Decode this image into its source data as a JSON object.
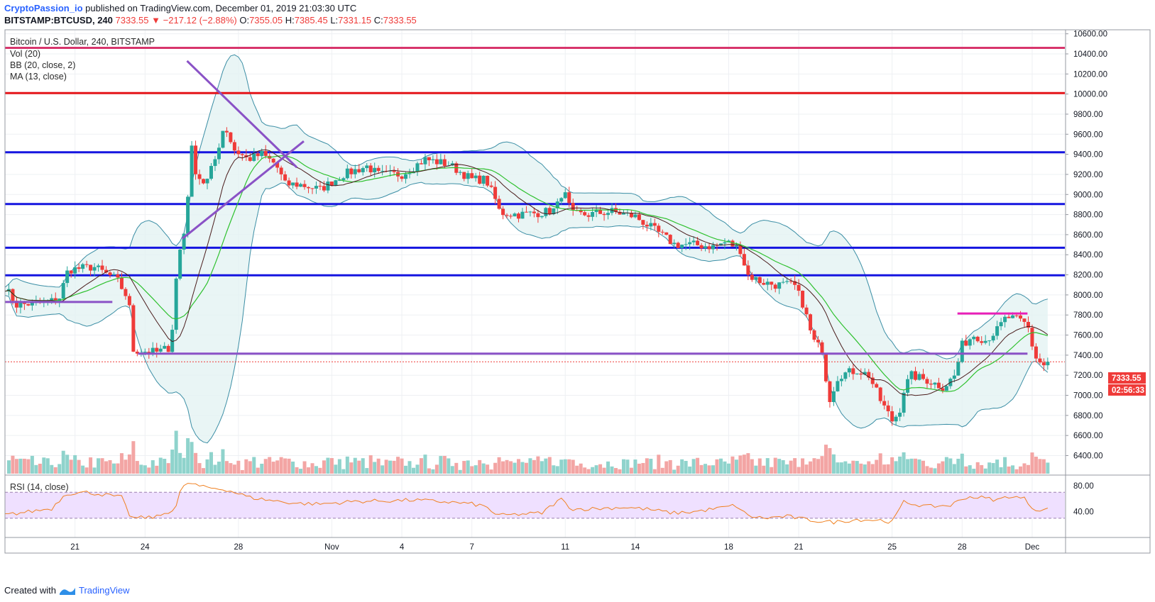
{
  "header": {
    "user": "CryptoPassion_io",
    "published": "published on TradingView.com, December 01, 2019 21:03:30 UTC",
    "symbol": "BITSTAMP:BTCUSD, 240",
    "last": "7333.55",
    "change": "−217.12 (−2.88%)",
    "open_label": "O:",
    "open": "7355.05",
    "high_label": "H:",
    "high": "7385.45",
    "low_label": "L:",
    "low": "7331.15",
    "close_label": "C:",
    "close": "7333.55"
  },
  "legend": {
    "title": "Bitcoin / U.S. Dollar, 240, BITSTAMP",
    "vol": "Vol (20)",
    "bb": "BB (20, close, 2)",
    "ma": "MA (13, close)",
    "rsi": "RSI (14, close)"
  },
  "footer": {
    "created": "Created with",
    "brand": "TradingView"
  },
  "price_tags": {
    "last": "7333.55",
    "countdown": "02:56:33"
  },
  "colors": {
    "up": "#26a69a",
    "down": "#ef3b39",
    "blue_line": "#1515e0",
    "red_line": "#e5151a",
    "magenta_line": "#e81fb7",
    "purple_line": "#8a52c6",
    "pink_line": "#d8356c",
    "bb_line": "#3b8ea5",
    "bb_fill": "#e3f2f3",
    "ma": "#4a1c1c",
    "basis": "#2fc12f",
    "rsi": "#f08020",
    "rsi_band": "#efe0ff"
  },
  "chart_data": {
    "type": "candlestick",
    "price_axis": {
      "ticks": [
        6400,
        6600,
        6800,
        7000,
        7200,
        7400,
        7600,
        7800,
        8000,
        8200,
        8400,
        8600,
        8800,
        9000,
        9200,
        9400,
        9600,
        9800,
        10000,
        10200,
        10400,
        10600
      ],
      "tick_labels": [
        "6400.00",
        "6600.00",
        "6800.00",
        "7000.00",
        "7200.00",
        "7400.00",
        "7600.00",
        "7800.00",
        "8000.00",
        "8200.00",
        "8400.00",
        "8600.00",
        "8800.00",
        "9000.00",
        "9200.00",
        "9400.00",
        "9600.00",
        "9800.00",
        "10000.00",
        "10200.00",
        "10400.00",
        "10600.00"
      ],
      "range": [
        6220,
        10640
      ]
    },
    "rsi_axis": {
      "ticks": [
        40,
        80
      ],
      "tick_labels": [
        "40.00",
        "80.00"
      ],
      "bands": [
        30,
        70
      ]
    },
    "x_labels": [
      {
        "label": "21",
        "day": 21
      },
      {
        "label": "24",
        "day": 24
      },
      {
        "label": "28",
        "day": 28
      },
      {
        "label": "Nov",
        "day": 32
      },
      {
        "label": "4",
        "day": 35
      },
      {
        "label": "7",
        "day": 38
      },
      {
        "label": "11",
        "day": 42
      },
      {
        "label": "14",
        "day": 45
      },
      {
        "label": "18",
        "day": 49
      },
      {
        "label": "21",
        "day": 52
      },
      {
        "label": "25",
        "day": 56
      },
      {
        "label": "28",
        "day": 59
      },
      {
        "label": "Dec",
        "day": 62
      }
    ],
    "horizontal_levels": [
      {
        "price": 10460,
        "color": "#d8356c"
      },
      {
        "price": 10010,
        "color": "#e5151a"
      },
      {
        "price": 9420,
        "color": "#1515e0"
      },
      {
        "price": 8905,
        "color": "#1515e0"
      },
      {
        "price": 8470,
        "color": "#1515e0"
      },
      {
        "price": 8195,
        "color": "#1515e0"
      }
    ],
    "segments": [
      {
        "from": [
          18.0,
          7930
        ],
        "to": [
          22.6,
          7930
        ],
        "color": "#8a52c6"
      },
      {
        "from": [
          23.7,
          7415
        ],
        "to": [
          61.8,
          7415
        ],
        "color": "#8a52c6"
      },
      {
        "from": [
          58.8,
          7815
        ],
        "to": [
          61.8,
          7815
        ],
        "color": "#e81fb7"
      },
      {
        "from": [
          25.8,
          10330
        ],
        "to": [
          30.5,
          9270
        ],
        "color": "#8a52c6"
      },
      {
        "from": [
          25.6,
          8560
        ],
        "to": [
          30.8,
          9530
        ],
        "color": "#8a52c6"
      }
    ],
    "last_price": 7333.55,
    "ohlc_waypoints": [
      [
        18.0,
        8080
      ],
      [
        18.5,
        7900
      ],
      [
        19.5,
        7920
      ],
      [
        20.3,
        7950
      ],
      [
        20.7,
        8250
      ],
      [
        21.8,
        8280
      ],
      [
        22.8,
        8150
      ],
      [
        23.3,
        7950
      ],
      [
        23.5,
        7450
      ],
      [
        24.5,
        7430
      ],
      [
        25.1,
        7480
      ],
      [
        25.4,
        8350
      ],
      [
        25.7,
        8650
      ],
      [
        26.0,
        9450
      ],
      [
        26.2,
        9200
      ],
      [
        26.6,
        9100
      ],
      [
        27.0,
        9350
      ],
      [
        27.4,
        9700
      ],
      [
        27.8,
        9450
      ],
      [
        28.4,
        9350
      ],
      [
        29.0,
        9400
      ],
      [
        29.6,
        9300
      ],
      [
        30.0,
        9100
      ],
      [
        30.6,
        9100
      ],
      [
        31.5,
        9050
      ],
      [
        32.5,
        9200
      ],
      [
        33.5,
        9280
      ],
      [
        34.0,
        9200
      ],
      [
        35.0,
        9200
      ],
      [
        36.0,
        9350
      ],
      [
        37.0,
        9300
      ],
      [
        38.0,
        9150
      ],
      [
        38.6,
        9150
      ],
      [
        39.0,
        8950
      ],
      [
        39.2,
        8820
      ],
      [
        40.0,
        8800
      ],
      [
        41.0,
        8820
      ],
      [
        41.6,
        8850
      ],
      [
        41.9,
        9050
      ],
      [
        42.3,
        8800
      ],
      [
        43.0,
        8800
      ],
      [
        44.0,
        8830
      ],
      [
        45.0,
        8780
      ],
      [
        45.8,
        8650
      ],
      [
        46.7,
        8500
      ],
      [
        47.5,
        8500
      ],
      [
        48.4,
        8480
      ],
      [
        48.9,
        8530
      ],
      [
        49.5,
        8450
      ],
      [
        49.8,
        8200
      ],
      [
        50.4,
        8130
      ],
      [
        51.0,
        8100
      ],
      [
        51.8,
        8100
      ],
      [
        52.2,
        7900
      ],
      [
        52.6,
        7550
      ],
      [
        53.0,
        7450
      ],
      [
        53.3,
        6950
      ],
      [
        53.7,
        7200
      ],
      [
        54.5,
        7250
      ],
      [
        55.0,
        7200
      ],
      [
        55.5,
        6950
      ],
      [
        56.0,
        6750
      ],
      [
        56.3,
        6830
      ],
      [
        56.5,
        7050
      ],
      [
        56.8,
        7200
      ],
      [
        57.5,
        7150
      ],
      [
        58.2,
        7080
      ],
      [
        58.7,
        7200
      ],
      [
        59.0,
        7500
      ],
      [
        59.5,
        7600
      ],
      [
        60.0,
        7550
      ],
      [
        60.5,
        7650
      ],
      [
        60.9,
        7780
      ],
      [
        61.4,
        7750
      ],
      [
        61.8,
        7700
      ],
      [
        62.0,
        7500
      ],
      [
        62.2,
        7350
      ],
      [
        62.5,
        7300
      ],
      [
        62.7,
        7334
      ]
    ],
    "rsi_waypoints": [
      [
        18.0,
        35
      ],
      [
        19.0,
        40
      ],
      [
        20.0,
        45
      ],
      [
        20.6,
        68
      ],
      [
        21.5,
        70
      ],
      [
        22.5,
        65
      ],
      [
        23.0,
        62
      ],
      [
        23.4,
        30
      ],
      [
        24.5,
        32
      ],
      [
        25.3,
        45
      ],
      [
        25.5,
        70
      ],
      [
        25.8,
        85
      ],
      [
        26.5,
        78
      ],
      [
        27.5,
        74
      ],
      [
        28.5,
        62
      ],
      [
        29.5,
        57
      ],
      [
        30.5,
        53
      ],
      [
        31.5,
        52
      ],
      [
        33.0,
        56
      ],
      [
        34.5,
        57
      ],
      [
        35.5,
        58
      ],
      [
        37.0,
        55
      ],
      [
        38.0,
        52
      ],
      [
        38.6,
        48
      ],
      [
        39.1,
        34
      ],
      [
        40.0,
        36
      ],
      [
        41.0,
        38
      ],
      [
        41.8,
        60
      ],
      [
        42.3,
        44
      ],
      [
        43.5,
        45
      ],
      [
        44.5,
        47
      ],
      [
        45.5,
        44
      ],
      [
        46.6,
        38
      ],
      [
        47.5,
        40
      ],
      [
        48.5,
        45
      ],
      [
        49.3,
        50
      ],
      [
        49.8,
        34
      ],
      [
        50.5,
        30
      ],
      [
        51.5,
        33
      ],
      [
        52.3,
        28
      ],
      [
        53.0,
        25
      ],
      [
        53.5,
        24
      ],
      [
        54.5,
        28
      ],
      [
        55.5,
        27
      ],
      [
        56.0,
        24
      ],
      [
        56.5,
        55
      ],
      [
        57.5,
        48
      ],
      [
        58.5,
        50
      ],
      [
        59.2,
        63
      ],
      [
        59.8,
        62
      ],
      [
        60.5,
        58
      ],
      [
        61.0,
        64
      ],
      [
        61.7,
        60
      ],
      [
        62.0,
        46
      ],
      [
        62.4,
        42
      ],
      [
        62.7,
        44
      ]
    ]
  }
}
